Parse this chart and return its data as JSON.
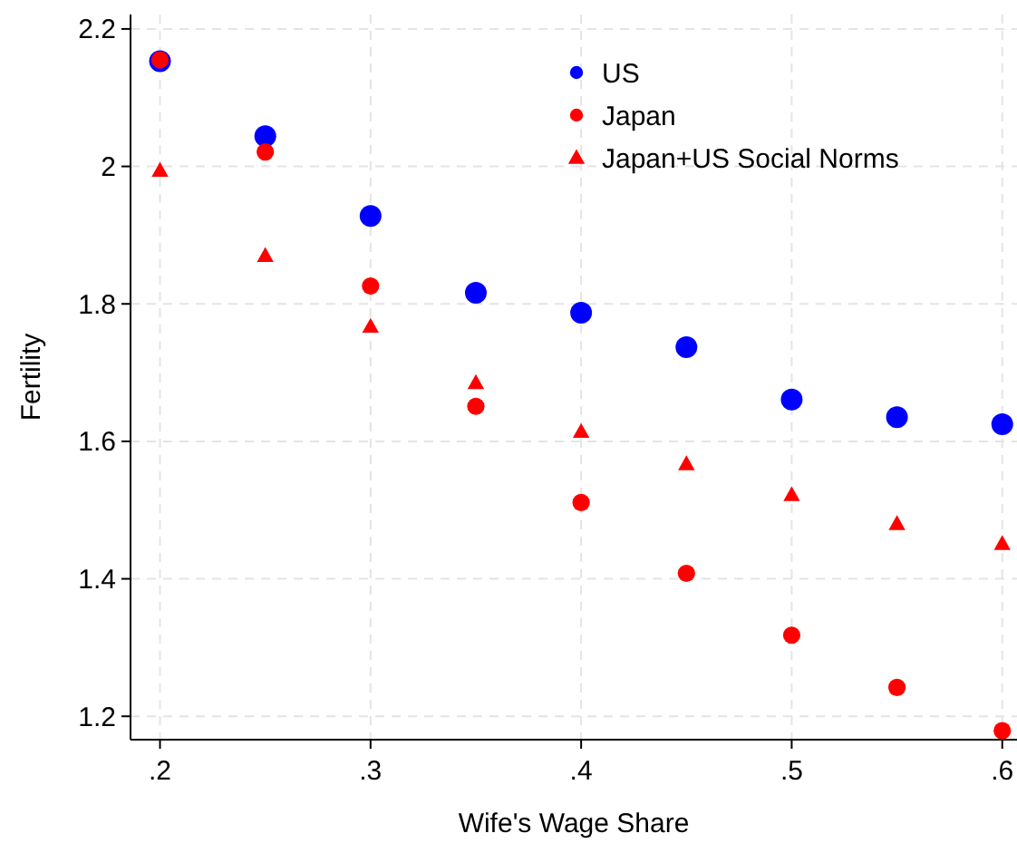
{
  "chart_data": {
    "type": "scatter",
    "xlabel": "Wife's Wage Share",
    "ylabel": "Fertility",
    "x": [
      0.2,
      0.25,
      0.3,
      0.35,
      0.4,
      0.45,
      0.5,
      0.55,
      0.6
    ],
    "series": [
      {
        "name": "US",
        "color": "#0000ff",
        "marker": "circle",
        "values": [
          2.153,
          2.044,
          1.928,
          1.816,
          1.787,
          1.737,
          1.661,
          1.635,
          1.625
        ]
      },
      {
        "name": "Japan",
        "color": "#ff0000",
        "marker": "circle",
        "values": [
          2.155,
          2.021,
          1.826,
          1.651,
          1.511,
          1.408,
          1.318,
          1.242,
          1.179
        ]
      },
      {
        "name": "Japan+US Social Norms",
        "color": "#ff0000",
        "marker": "triangle",
        "values": [
          1.994,
          1.87,
          1.767,
          1.685,
          1.614,
          1.567,
          1.522,
          1.48,
          1.451
        ]
      }
    ],
    "xlim": [
      0.186,
      0.607
    ],
    "ylim": [
      1.166,
      2.221
    ],
    "xticks": [
      {
        "value": 0.2,
        "label": ".2"
      },
      {
        "value": 0.3,
        "label": ".3"
      },
      {
        "value": 0.4,
        "label": ".4"
      },
      {
        "value": 0.5,
        "label": ".5"
      },
      {
        "value": 0.6,
        "label": ".6"
      }
    ],
    "yticks": [
      1.2,
      1.4,
      1.6,
      1.8,
      2,
      2.2
    ],
    "grid": true,
    "legend": "top right"
  }
}
